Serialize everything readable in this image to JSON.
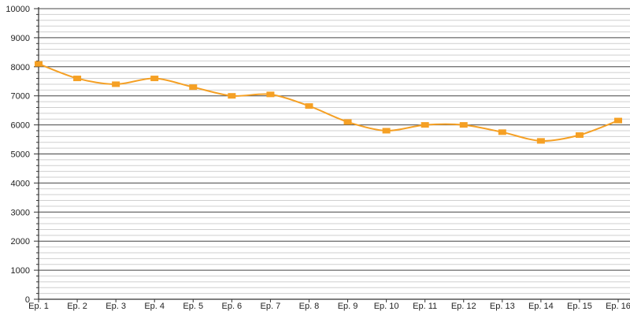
{
  "chart_data": {
    "type": "line",
    "title": "",
    "xlabel": "",
    "ylabel": "",
    "categories": [
      "Ep. 1",
      "Ep. 2",
      "Ep. 3",
      "Ep. 4",
      "Ep. 5",
      "Ep. 6",
      "Ep. 7",
      "Ep. 8",
      "Ep. 9",
      "Ep. 10",
      "Ep. 11",
      "Ep. 12",
      "Ep. 13",
      "Ep. 14",
      "Ep. 15",
      "Ep. 16"
    ],
    "series": [
      {
        "values": [
          8100,
          7600,
          7400,
          7600,
          7300,
          7000,
          7050,
          6650,
          6100,
          5800,
          6000,
          6000,
          5750,
          5450,
          5650,
          6150
        ],
        "color": "#f5a024"
      }
    ],
    "ylim": [
      0,
      10000
    ],
    "yticks": [
      "0",
      "1000",
      "2000",
      "3000",
      "4000",
      "5000",
      "6000",
      "7000",
      "8000",
      "9000",
      "10000"
    ],
    "grid": true,
    "minor_grid_step": 200,
    "legend": "none"
  }
}
